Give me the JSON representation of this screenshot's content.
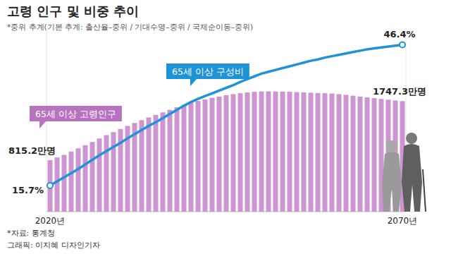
{
  "chart_data": {
    "type": "bar",
    "title": "고령 인구 및 비중 추이",
    "subtitle": "*중위 추계(기본 추계: 출산율–중위 / 기대수명–중위 / 국제순이동–중위)",
    "annotations": [
      "*자료: 통계청",
      "그래픽: 이지혜 디자인기자"
    ],
    "categories": [
      "2020년",
      null,
      null,
      null,
      null,
      null,
      null,
      null,
      null,
      null,
      null,
      null,
      null,
      null,
      null,
      null,
      null,
      null,
      null,
      null,
      null,
      null,
      null,
      null,
      null,
      null,
      null,
      null,
      null,
      null,
      null,
      null,
      null,
      null,
      null,
      null,
      null,
      null,
      null,
      null,
      null,
      null,
      null,
      null,
      null,
      null,
      null,
      null,
      null,
      null,
      "2070년"
    ],
    "ylim": [
      0,
      2900
    ],
    "yticks": [],
    "y2lim": [
      10,
      50
    ],
    "y2ticks": [],
    "tick_labels": false,
    "grid": false,
    "data_labels": true,
    "series": [
      {
        "name": "65세 이상 고령인구",
        "type": "bar",
        "color": "#cd94d1",
        "values": [
          815.2,
          857,
          898,
          950,
          1000,
          1051,
          1102,
          1157,
          1210,
          1258,
          1306,
          1355,
          1402,
          1447,
          1489,
          1529,
          1570,
          1610,
          1650,
          1688,
          1724,
          1750,
          1775,
          1800,
          1820,
          1840,
          1858,
          1872,
          1885,
          1894,
          1900,
          1902,
          1900,
          1898,
          1895,
          1890,
          1885,
          1880,
          1876,
          1872,
          1868,
          1858,
          1846,
          1833,
          1820,
          1807,
          1795,
          1782,
          1770,
          1758,
          1747.3
        ],
        "value_labels": [
          "815.2만명",
          null,
          null,
          null,
          null,
          null,
          null,
          null,
          null,
          null,
          null,
          null,
          null,
          null,
          null,
          null,
          null,
          null,
          null,
          null,
          null,
          null,
          null,
          null,
          null,
          null,
          null,
          null,
          null,
          null,
          null,
          null,
          null,
          null,
          null,
          null,
          null,
          null,
          null,
          null,
          null,
          null,
          null,
          null,
          null,
          null,
          null,
          null,
          null,
          null,
          "1747.3만명"
        ]
      },
      {
        "name": "65세 이상 구성비",
        "type": "line",
        "axis": "y2",
        "color": "#1f93d8",
        "marker": "circle",
        "values": [
          15.7,
          16.6,
          17.5,
          18.4,
          19.3,
          20.3,
          21.3,
          22.3,
          23.2,
          24.1,
          25.0,
          26.0,
          26.9,
          27.8,
          28.7,
          29.5,
          30.4,
          31.3,
          32.2,
          33.1,
          33.9,
          34.6,
          35.2,
          35.8,
          36.4,
          37.0,
          37.6,
          38.3,
          38.9,
          39.5,
          40.1,
          40.5,
          40.9,
          41.3,
          41.7,
          42.1,
          42.5,
          42.9,
          43.2,
          43.6,
          43.9,
          44.2,
          44.5,
          44.8,
          45.1,
          45.4,
          45.6,
          45.8,
          46.0,
          46.2,
          46.4
        ],
        "value_labels": [
          "15.7%",
          null,
          null,
          null,
          null,
          null,
          null,
          null,
          null,
          null,
          null,
          null,
          null,
          null,
          null,
          null,
          null,
          null,
          null,
          null,
          null,
          null,
          null,
          null,
          null,
          null,
          null,
          null,
          null,
          null,
          null,
          null,
          null,
          null,
          null,
          null,
          null,
          null,
          null,
          null,
          null,
          null,
          null,
          null,
          null,
          null,
          null,
          null,
          null,
          null,
          "46.4%"
        ]
      }
    ]
  }
}
